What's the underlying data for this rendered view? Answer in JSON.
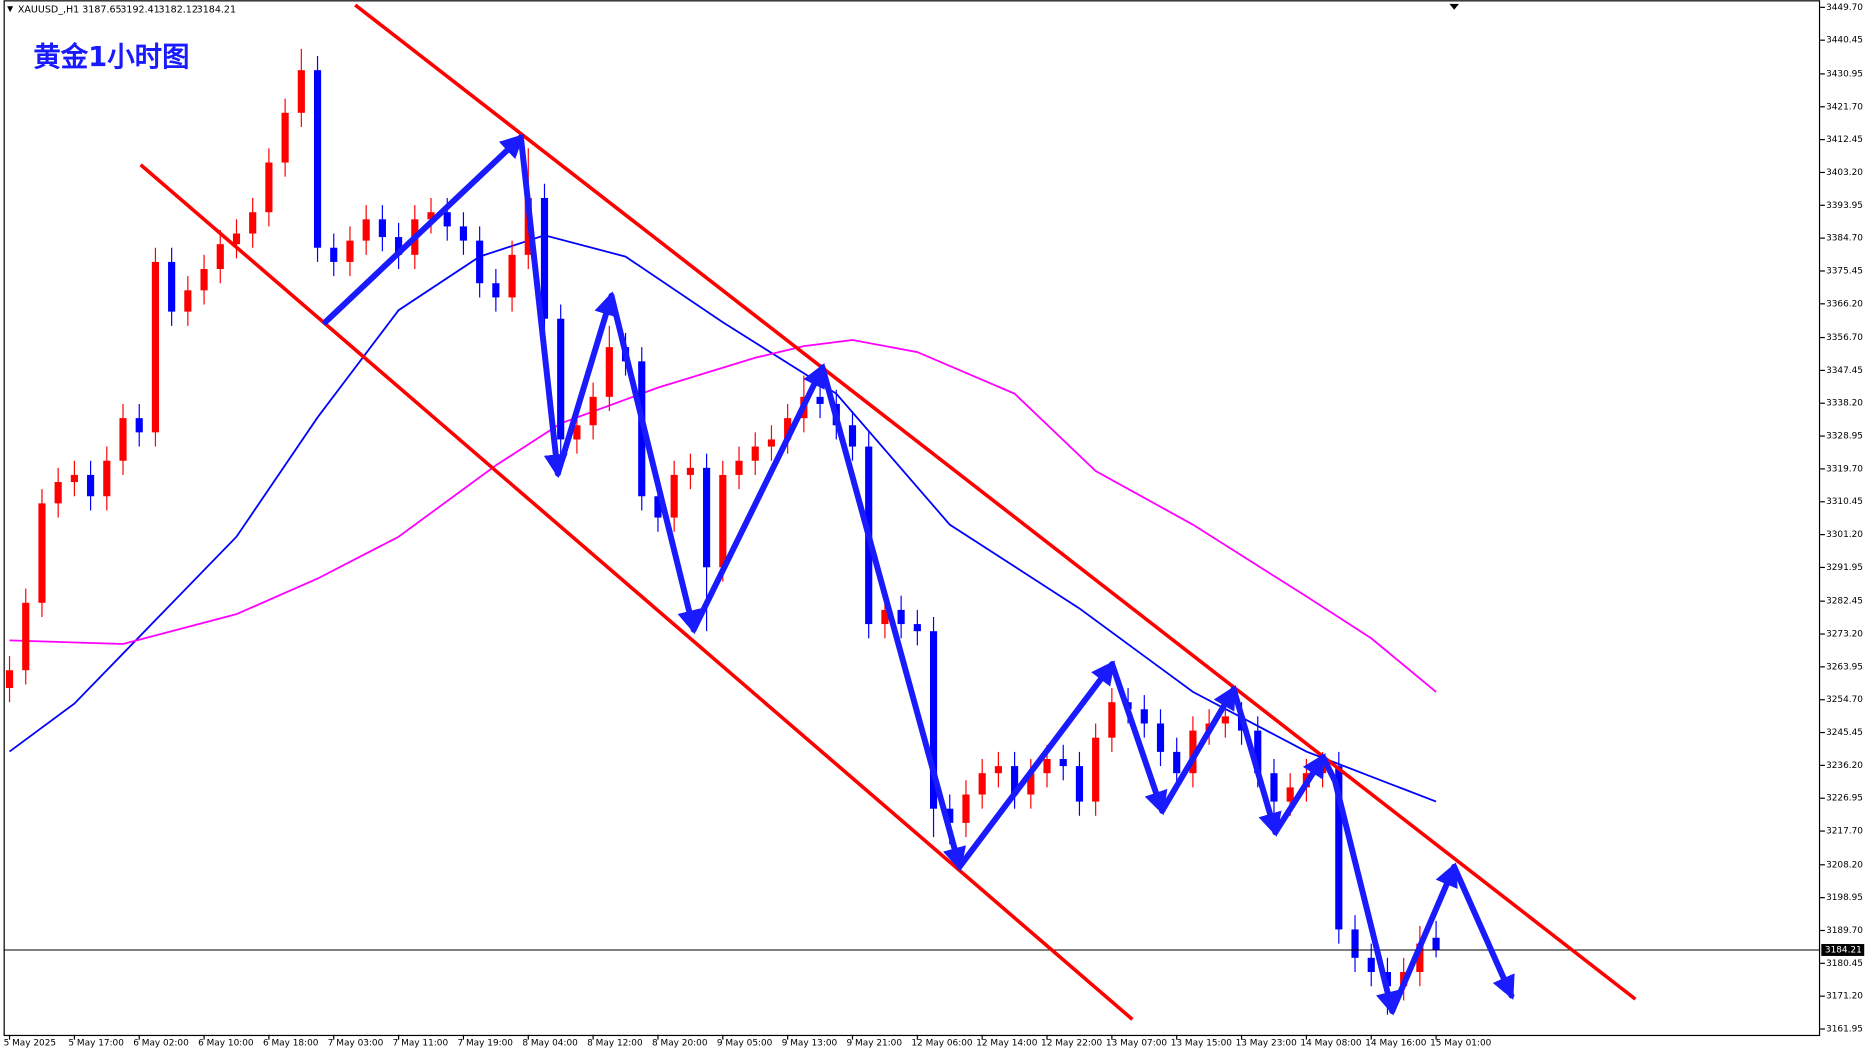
{
  "chart_data": {
    "type": "candlestick",
    "symbol": "XAUUSD_,H1",
    "title": "黄金1小时图",
    "categories": [
      "5 May 2025",
      null,
      null,
      null,
      "5 May 17:00",
      null,
      null,
      null,
      "6 May 02:00",
      null,
      null,
      null,
      "6 May 10:00",
      null,
      null,
      null,
      "6 May 18:00",
      null,
      null,
      null,
      "7 May 03:00",
      null,
      null,
      null,
      "7 May 11:00",
      null,
      null,
      null,
      "7 May 19:00",
      null,
      null,
      null,
      "8 May 04:00",
      null,
      null,
      null,
      "8 May 12:00",
      null,
      null,
      null,
      "8 May 20:00",
      null,
      null,
      null,
      "9 May 05:00",
      null,
      null,
      null,
      "9 May 13:00",
      null,
      null,
      null,
      "9 May 21:00",
      null,
      null,
      null,
      "12 May 06:00",
      null,
      null,
      null,
      "12 May 14:00",
      null,
      null,
      null,
      "12 May 22:00",
      null,
      null,
      null,
      "13 May 07:00",
      null,
      null,
      null,
      "13 May 15:00",
      null,
      null,
      null,
      "13 May 23:00",
      null,
      null,
      null,
      "14 May 08:00",
      null,
      null,
      null,
      "14 May 16:00",
      null,
      null,
      null,
      "15 May 01:00"
    ],
    "open": [
      3258,
      3263,
      3282,
      3310,
      3316,
      3318,
      3312,
      3322,
      3334,
      3330,
      3378,
      3364,
      3370,
      3376,
      3383,
      3386,
      3392,
      3406,
      3420,
      3432,
      3382,
      3378,
      3384,
      3390,
      3385,
      3380,
      3390,
      3392,
      3388,
      3384,
      3372,
      3368,
      3380,
      3396,
      3362,
      3328,
      3332,
      3340,
      3354,
      3350,
      3312,
      3306,
      3318,
      3320,
      3292,
      3318,
      3322,
      3326,
      3328,
      3334,
      3340,
      3338,
      3332,
      3326,
      3276,
      3280,
      3276,
      3274,
      3224,
      3220,
      3228,
      3234,
      3236,
      3228,
      3234,
      3238,
      3236,
      3226,
      3244,
      3254,
      3252,
      3248,
      3240,
      3234,
      3246,
      3248,
      3250,
      3246,
      3234,
      3226,
      3230,
      3234,
      3236,
      3190,
      3182,
      3178,
      3174,
      3178,
      3187.65
    ],
    "high": [
      3267,
      3286,
      3314,
      3320,
      3322,
      3322,
      3326,
      3338,
      3338,
      3382,
      3382,
      3374,
      3380,
      3387,
      3390,
      3396,
      3410,
      3424,
      3438,
      3436,
      3386,
      3388,
      3394,
      3394,
      3389,
      3394,
      3396,
      3396,
      3392,
      3388,
      3376,
      3384,
      3410,
      3400,
      3366,
      3336,
      3344,
      3360,
      3358,
      3354,
      3316,
      3322,
      3324,
      3324,
      3322,
      3326,
      3330,
      3332,
      3338,
      3346,
      3344,
      3342,
      3336,
      3330,
      3284,
      3284,
      3280,
      3278,
      3228,
      3232,
      3238,
      3240,
      3240,
      3238,
      3242,
      3242,
      3240,
      3248,
      3258,
      3258,
      3256,
      3252,
      3244,
      3250,
      3252,
      3254,
      3254,
      3250,
      3238,
      3234,
      3238,
      3240,
      3240,
      3194,
      3186,
      3182,
      3182,
      3191,
      3192.41
    ],
    "low": [
      3254,
      3259,
      3278,
      3306,
      3312,
      3308,
      3308,
      3318,
      3326,
      3326,
      3360,
      3360,
      3366,
      3372,
      3379,
      3382,
      3388,
      3402,
      3416,
      3378,
      3374,
      3374,
      3380,
      3381,
      3376,
      3376,
      3386,
      3384,
      3380,
      3368,
      3364,
      3364,
      3376,
      3358,
      3320,
      3324,
      3328,
      3336,
      3346,
      3308,
      3302,
      3302,
      3314,
      3274,
      3288,
      3314,
      3318,
      3322,
      3324,
      3330,
      3334,
      3328,
      3322,
      3272,
      3272,
      3272,
      3270,
      3216,
      3214,
      3216,
      3224,
      3230,
      3224,
      3224,
      3230,
      3232,
      3222,
      3222,
      3240,
      3248,
      3244,
      3236,
      3230,
      3230,
      3242,
      3244,
      3242,
      3230,
      3222,
      3222,
      3226,
      3230,
      3186,
      3178,
      3174,
      3166,
      3170,
      3174,
      3182.12
    ],
    "close": [
      3263,
      3282,
      3310,
      3316,
      3318,
      3312,
      3322,
      3334,
      3330,
      3378,
      3364,
      3370,
      3376,
      3383,
      3386,
      3392,
      3406,
      3420,
      3432,
      3382,
      3378,
      3384,
      3390,
      3385,
      3380,
      3390,
      3392,
      3388,
      3384,
      3372,
      3368,
      3380,
      3396,
      3362,
      3328,
      3332,
      3340,
      3354,
      3350,
      3312,
      3306,
      3318,
      3320,
      3292,
      3318,
      3322,
      3326,
      3328,
      3334,
      3340,
      3338,
      3332,
      3326,
      3276,
      3280,
      3276,
      3274,
      3224,
      3220,
      3228,
      3234,
      3236,
      3228,
      3234,
      3238,
      3236,
      3226,
      3244,
      3254,
      3252,
      3248,
      3240,
      3234,
      3246,
      3248,
      3250,
      3246,
      3234,
      3226,
      3230,
      3234,
      3236,
      3190,
      3182,
      3178,
      3174,
      3178,
      3186,
      3184.21
    ],
    "up_color": "#ff0000",
    "down_color": "#0000ff",
    "lines": [
      {
        "color": "#0000ff",
        "x": [
          0,
          4,
          9,
          14,
          19,
          24,
          29,
          33,
          38,
          44,
          51,
          58,
          66,
          73,
          80,
          88
        ],
        "values": [
          3240.1,
          3253.6,
          3277.1,
          3300.6,
          3334.2,
          3364.4,
          3379.5,
          3385.5,
          3379.5,
          3361.0,
          3340.9,
          3304.0,
          3280.4,
          3256.9,
          3240.1,
          3226.0
        ]
      },
      {
        "color": "#ff00ff",
        "x": [
          0,
          7,
          14,
          19,
          24,
          30,
          34,
          40,
          46,
          49,
          52,
          56,
          62,
          67,
          73,
          80,
          84,
          88
        ],
        "values": [
          3271.4,
          3270.4,
          3278.8,
          3288.8,
          3300.6,
          3320.7,
          3332.5,
          3342.6,
          3351.0,
          3354.3,
          3356.0,
          3352.6,
          3340.9,
          3319.1,
          3304.0,
          3283.8,
          3272.0,
          3256.9
        ]
      }
    ],
    "ylim": [
      3160.3,
      3451.7
    ],
    "yticks": [
      {
        "value": 3449.7,
        "label": "3449.70"
      },
      3440.45,
      3430.95,
      {
        "value": 3421.7,
        "label": "3421.70"
      },
      3412.45,
      {
        "value": 3403.2,
        "label": "3403.20"
      },
      3393.95,
      {
        "value": 3384.7,
        "label": "3384.70"
      },
      3375.45,
      {
        "value": 3366.2,
        "label": "3366.20"
      },
      {
        "value": 3356.7,
        "label": "3356.70"
      },
      3347.45,
      {
        "value": 3338.2,
        "label": "3338.20"
      },
      3328.95,
      {
        "value": 3319.7,
        "label": "3319.70"
      },
      3310.45,
      {
        "value": 3301.2,
        "label": "3301.20"
      },
      3291.95,
      3282.45,
      {
        "value": 3273.2,
        "label": "3273.20"
      },
      3263.95,
      {
        "value": 3254.7,
        "label": "3254.70"
      },
      3245.45,
      {
        "value": 3236.2,
        "label": "3236.20"
      },
      3226.95,
      {
        "value": 3217.7,
        "label": "3217.70"
      },
      {
        "value": 3208.2,
        "label": "3208.20"
      },
      3198.95,
      {
        "value": 3189.7,
        "label": "3189.70"
      },
      3180.45,
      {
        "value": 3171.2,
        "label": "3171.20"
      },
      3161.95
    ],
    "grid": false
  }
}
